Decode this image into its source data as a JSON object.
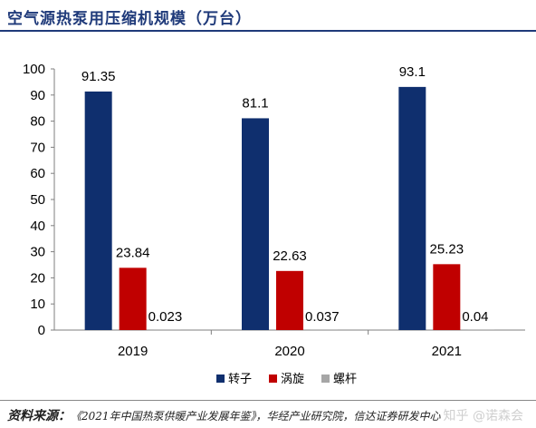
{
  "page": {
    "title": "空气源热泵用压缩机规模（万台）",
    "source_label": "资料来源：",
    "source_text": "《2021年中国热泵供暖产业发展年鉴》，华经产业研究院，信达证券研发中心",
    "watermark": "知乎 @诺森会"
  },
  "chart_data": {
    "type": "bar",
    "title": "",
    "xlabel": "",
    "ylabel": "",
    "categories": [
      "2019",
      "2020",
      "2021"
    ],
    "ylim": [
      0,
      100
    ],
    "yticks": [
      0,
      10,
      20,
      30,
      40,
      50,
      60,
      70,
      80,
      90,
      100
    ],
    "grid": false,
    "legend_position": "bottom",
    "series": [
      {
        "name": "转子",
        "color": "#0f2f6e",
        "values": [
          91.35,
          81.1,
          93.1
        ],
        "labels": [
          "91.35",
          "81.1",
          "93.1"
        ]
      },
      {
        "name": "涡旋",
        "color": "#c00000",
        "values": [
          23.84,
          22.63,
          25.23
        ],
        "labels": [
          "23.84",
          "22.63",
          "25.23"
        ]
      },
      {
        "name": "螺杆",
        "color": "#a6a6a6",
        "values": [
          0.023,
          0.037,
          0.04
        ],
        "labels": [
          "0.023",
          "0.037",
          "0.04"
        ]
      }
    ]
  }
}
